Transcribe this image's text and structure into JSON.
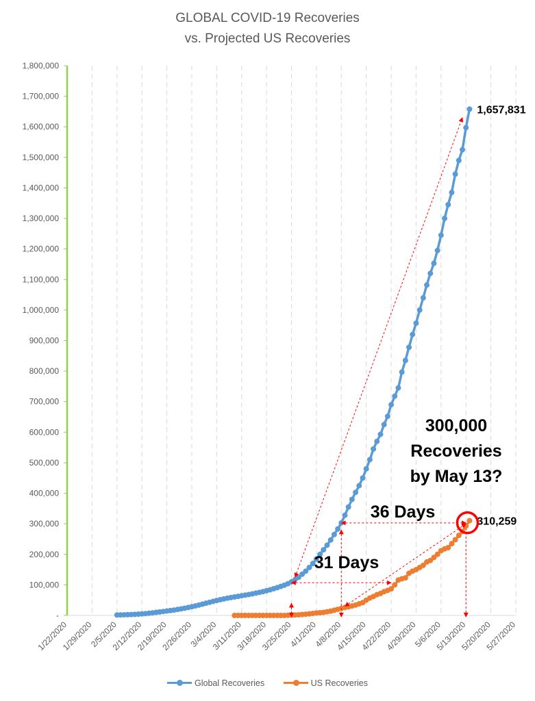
{
  "chart_data": {
    "type": "line",
    "title": "GLOBAL COVID-19 Recoveries",
    "subtitle": "vs. Projected US Recoveries",
    "y_tick_labels": [
      "-",
      "100,000",
      "200,000",
      "300,000",
      "400,000",
      "500,000",
      "600,000",
      "700,000",
      "800,000",
      "900,000",
      "1,000,000",
      "1,100,000",
      "1,200,000",
      "1,300,000",
      "1,400,000",
      "1,500,000",
      "1,600,000",
      "1,700,000",
      "1,800,000"
    ],
    "x_tick_labels": [
      "1/22/2020",
      "1/29/2020",
      "2/5/2020",
      "2/12/2020",
      "2/19/2020",
      "2/26/2020",
      "3/4/2020",
      "3/11/2020",
      "3/18/2020",
      "3/25/2020",
      "4/1/2020",
      "4/8/2020",
      "4/15/2020",
      "4/22/2020",
      "4/29/2020",
      "5/6/2020",
      "5/13/2020",
      "5/20/2020",
      "5/27/2020"
    ],
    "xlim": [
      "2020-01-22",
      "2020-05-27"
    ],
    "ylim": [
      0,
      1800000
    ],
    "grid": "vertical dashed",
    "legend_position": "bottom",
    "series": [
      {
        "name": "Global Recoveries",
        "color": "#5b9bd5",
        "points": [
          [
            "2020-02-05",
            1500
          ],
          [
            "2020-02-06",
            1700
          ],
          [
            "2020-02-07",
            2000
          ],
          [
            "2020-02-08",
            2400
          ],
          [
            "2020-02-09",
            2900
          ],
          [
            "2020-02-10",
            3500
          ],
          [
            "2020-02-11",
            4200
          ],
          [
            "2020-02-12",
            5000
          ],
          [
            "2020-02-13",
            6000
          ],
          [
            "2020-02-14",
            7200
          ],
          [
            "2020-02-15",
            8500
          ],
          [
            "2020-02-16",
            10000
          ],
          [
            "2020-02-17",
            11500
          ],
          [
            "2020-02-18",
            13000
          ],
          [
            "2020-02-19",
            14500
          ],
          [
            "2020-02-20",
            16000
          ],
          [
            "2020-02-21",
            17500
          ],
          [
            "2020-02-22",
            19500
          ],
          [
            "2020-02-23",
            21500
          ],
          [
            "2020-02-24",
            23500
          ],
          [
            "2020-02-25",
            26000
          ],
          [
            "2020-02-26",
            28500
          ],
          [
            "2020-02-27",
            31000
          ],
          [
            "2020-02-28",
            34000
          ],
          [
            "2020-02-29",
            37000
          ],
          [
            "2020-03-01",
            40000
          ],
          [
            "2020-03-02",
            43000
          ],
          [
            "2020-03-03",
            46000
          ],
          [
            "2020-03-04",
            49000
          ],
          [
            "2020-03-05",
            51500
          ],
          [
            "2020-03-06",
            54000
          ],
          [
            "2020-03-07",
            56500
          ],
          [
            "2020-03-08",
            58500
          ],
          [
            "2020-03-09",
            60500
          ],
          [
            "2020-03-10",
            62500
          ],
          [
            "2020-03-11",
            64500
          ],
          [
            "2020-03-12",
            66500
          ],
          [
            "2020-03-13",
            68500
          ],
          [
            "2020-03-14",
            70500
          ],
          [
            "2020-03-15",
            73000
          ],
          [
            "2020-03-16",
            75500
          ],
          [
            "2020-03-17",
            78000
          ],
          [
            "2020-03-18",
            81000
          ],
          [
            "2020-03-19",
            84000
          ],
          [
            "2020-03-20",
            87500
          ],
          [
            "2020-03-21",
            91000
          ],
          [
            "2020-03-22",
            95000
          ],
          [
            "2020-03-23",
            99000
          ],
          [
            "2020-03-24",
            104000
          ],
          [
            "2020-03-25",
            110000
          ],
          [
            "2020-03-26",
            117000
          ],
          [
            "2020-03-27",
            125000
          ],
          [
            "2020-03-28",
            135000
          ],
          [
            "2020-03-29",
            145000
          ],
          [
            "2020-03-30",
            157000
          ],
          [
            "2020-03-31",
            170000
          ],
          [
            "2020-04-01",
            185000
          ],
          [
            "2020-04-02",
            200000
          ],
          [
            "2020-04-03",
            215000
          ],
          [
            "2020-04-04",
            230000
          ],
          [
            "2020-04-05",
            247000
          ],
          [
            "2020-04-06",
            265000
          ],
          [
            "2020-04-07",
            283000
          ],
          [
            "2020-04-08",
            303000
          ],
          [
            "2020-04-09",
            328000
          ],
          [
            "2020-04-10",
            355000
          ],
          [
            "2020-04-11",
            380000
          ],
          [
            "2020-04-12",
            403000
          ],
          [
            "2020-04-13",
            425000
          ],
          [
            "2020-04-14",
            450000
          ],
          [
            "2020-04-15",
            480000
          ],
          [
            "2020-04-16",
            510000
          ],
          [
            "2020-04-17",
            545000
          ],
          [
            "2020-04-18",
            570000
          ],
          [
            "2020-04-19",
            593000
          ],
          [
            "2020-04-20",
            625000
          ],
          [
            "2020-04-21",
            652000
          ],
          [
            "2020-04-22",
            690000
          ],
          [
            "2020-04-23",
            718000
          ],
          [
            "2020-04-24",
            745000
          ],
          [
            "2020-04-25",
            797000
          ],
          [
            "2020-04-26",
            835000
          ],
          [
            "2020-04-27",
            878000
          ],
          [
            "2020-04-28",
            920000
          ],
          [
            "2020-04-29",
            957000
          ],
          [
            "2020-04-30",
            1000000
          ],
          [
            "2020-05-01",
            1040000
          ],
          [
            "2020-05-02",
            1082000
          ],
          [
            "2020-05-03",
            1120000
          ],
          [
            "2020-05-04",
            1153000
          ],
          [
            "2020-05-05",
            1195000
          ],
          [
            "2020-05-06",
            1245000
          ],
          [
            "2020-05-07",
            1300000
          ],
          [
            "2020-05-08",
            1345000
          ],
          [
            "2020-05-09",
            1385000
          ],
          [
            "2020-05-10",
            1445000
          ],
          [
            "2020-05-11",
            1490000
          ],
          [
            "2020-05-12",
            1525000
          ],
          [
            "2020-05-13",
            1597000
          ],
          [
            "2020-05-14",
            1657831
          ]
        ]
      },
      {
        "name": "US Recoveries",
        "color": "#ed7d31",
        "points": [
          [
            "2020-03-09",
            0
          ],
          [
            "2020-03-10",
            0
          ],
          [
            "2020-03-11",
            0
          ],
          [
            "2020-03-12",
            0
          ],
          [
            "2020-03-13",
            0
          ],
          [
            "2020-03-14",
            0
          ],
          [
            "2020-03-15",
            0
          ],
          [
            "2020-03-16",
            0
          ],
          [
            "2020-03-17",
            0
          ],
          [
            "2020-03-18",
            0
          ],
          [
            "2020-03-19",
            0
          ],
          [
            "2020-03-20",
            0
          ],
          [
            "2020-03-21",
            0
          ],
          [
            "2020-03-22",
            0
          ],
          [
            "2020-03-23",
            0
          ],
          [
            "2020-03-24",
            500
          ],
          [
            "2020-03-25",
            1000
          ],
          [
            "2020-03-26",
            1500
          ],
          [
            "2020-03-27",
            2000
          ],
          [
            "2020-03-28",
            3000
          ],
          [
            "2020-03-29",
            4000
          ],
          [
            "2020-03-30",
            5000
          ],
          [
            "2020-03-31",
            6500
          ],
          [
            "2020-04-01",
            8000
          ],
          [
            "2020-04-02",
            9000
          ],
          [
            "2020-04-03",
            10000
          ],
          [
            "2020-04-04",
            12000
          ],
          [
            "2020-04-05",
            14000
          ],
          [
            "2020-04-06",
            17000
          ],
          [
            "2020-04-07",
            20000
          ],
          [
            "2020-04-08",
            23000
          ],
          [
            "2020-04-09",
            26000
          ],
          [
            "2020-04-10",
            28000
          ],
          [
            "2020-04-11",
            31000
          ],
          [
            "2020-04-12",
            34000
          ],
          [
            "2020-04-13",
            38000
          ],
          [
            "2020-04-14",
            42000
          ],
          [
            "2020-04-15",
            50000
          ],
          [
            "2020-04-16",
            57000
          ],
          [
            "2020-04-17",
            62000
          ],
          [
            "2020-04-18",
            68000
          ],
          [
            "2020-04-19",
            72000
          ],
          [
            "2020-04-20",
            78000
          ],
          [
            "2020-04-21",
            82000
          ],
          [
            "2020-04-22",
            87000
          ],
          [
            "2020-04-23",
            100000
          ],
          [
            "2020-04-24",
            116000
          ],
          [
            "2020-04-25",
            120000
          ],
          [
            "2020-04-26",
            123000
          ],
          [
            "2020-04-27",
            138000
          ],
          [
            "2020-04-28",
            145000
          ],
          [
            "2020-04-29",
            150000
          ],
          [
            "2020-04-30",
            157000
          ],
          [
            "2020-05-01",
            164000
          ],
          [
            "2020-05-02",
            175000
          ],
          [
            "2020-05-03",
            180000
          ],
          [
            "2020-05-04",
            190000
          ],
          [
            "2020-05-05",
            200000
          ],
          [
            "2020-05-06",
            212000
          ],
          [
            "2020-05-07",
            218000
          ],
          [
            "2020-05-08",
            222000
          ],
          [
            "2020-05-09",
            235000
          ],
          [
            "2020-05-10",
            248000
          ],
          [
            "2020-05-11",
            262000
          ],
          [
            "2020-05-12",
            275000
          ],
          [
            "2020-05-13",
            293000
          ],
          [
            "2020-05-14",
            310259
          ]
        ]
      }
    ],
    "data_labels": [
      {
        "series": "Global Recoveries",
        "date": "2020-05-14",
        "value": 1657831,
        "text": "1,657,831"
      },
      {
        "series": "US Recoveries",
        "date": "2020-05-14",
        "value": 310259,
        "text": "310,259"
      }
    ],
    "annotations": [
      {
        "id": "projection",
        "lines": [
          "300,000",
          "Recoveries",
          "by May 13?"
        ]
      },
      {
        "id": "days-36",
        "text": "36 Days"
      },
      {
        "id": "days-31",
        "text": "31 Days"
      }
    ],
    "annotation_color": "#ff0000"
  }
}
